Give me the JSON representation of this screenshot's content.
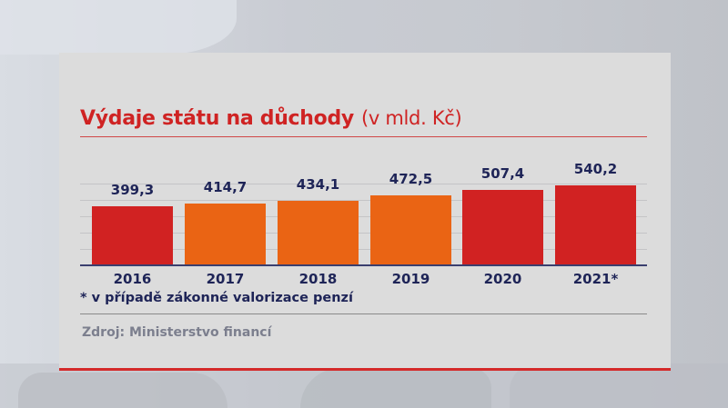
{
  "title": "Výdaje státu na důchody",
  "unit": "(v mld. Kč)",
  "footnote": "* v případě zákonné valorizace penzí",
  "source": "Zdroj: Ministerstvo financí",
  "colors": {
    "title": "#cf2323",
    "red_bar": "#d12222",
    "orange_bar": "#ea6414",
    "text": "#1e2457",
    "source": "#7c7f8e"
  },
  "bars": [
    {
      "year": "2016",
      "value": "399,3",
      "num": 399.3,
      "color": "#d12222"
    },
    {
      "year": "2017",
      "value": "414,7",
      "num": 414.7,
      "color": "#ea6414"
    },
    {
      "year": "2018",
      "value": "434,1",
      "num": 434.1,
      "color": "#ea6414"
    },
    {
      "year": "2019",
      "value": "472,5",
      "num": 472.5,
      "color": "#ea6414"
    },
    {
      "year": "2020",
      "value": "507,4",
      "num": 507.4,
      "color": "#d12222"
    },
    {
      "year": "2021*",
      "value": "540,2",
      "num": 540.2,
      "color": "#d12222"
    }
  ],
  "chart_data": {
    "type": "bar",
    "title": "Výdaje státu na důchody (v mld. Kč)",
    "categories": [
      "2016",
      "2017",
      "2018",
      "2019",
      "2020",
      "2021*"
    ],
    "values": [
      399.3,
      414.7,
      434.1,
      472.5,
      507.4,
      540.2
    ],
    "xlabel": "",
    "ylabel": "mld. Kč",
    "grid": true,
    "annotations": [
      "* v případě zákonné valorizace penzí",
      "Zdroj: Ministerstvo financí"
    ]
  }
}
